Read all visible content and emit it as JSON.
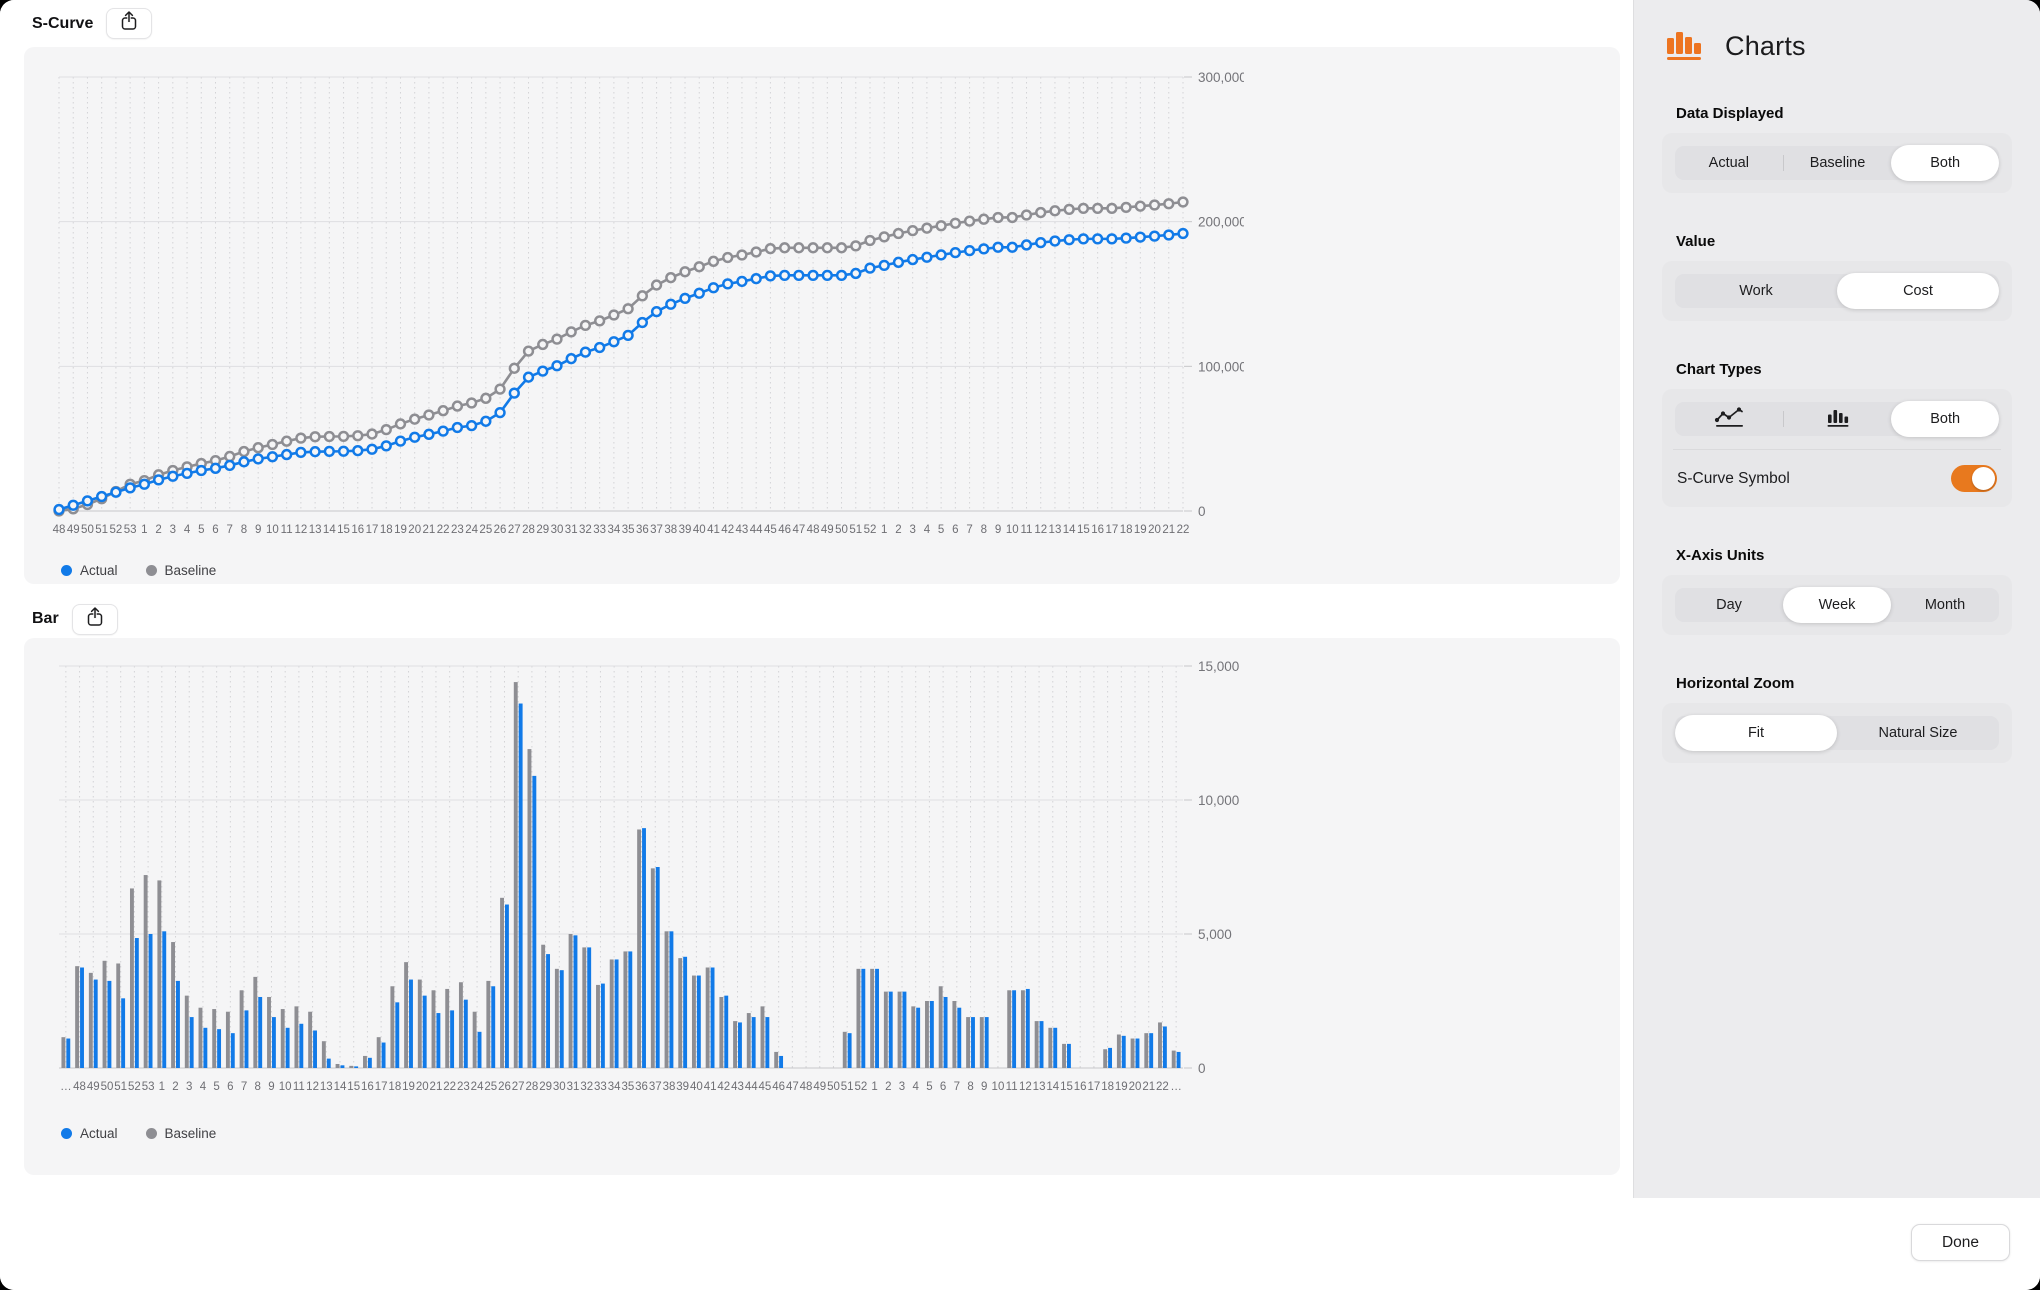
{
  "colors": {
    "actual": "#117ae8",
    "baseline": "#8e8e93",
    "accent_orange": "#e8791e"
  },
  "sidebar": {
    "title": "Charts",
    "sections": [
      {
        "heading": "Data Displayed",
        "segments": [
          "Actual",
          "Baseline",
          "Both"
        ],
        "selected": "Both"
      },
      {
        "heading": "Value",
        "segments": [
          "Work",
          "Cost"
        ],
        "selected": "Cost"
      },
      {
        "heading": "Chart Types",
        "segments": [
          "line-chart-icon",
          "bar-chart-icon",
          "Both"
        ],
        "selected": "Both",
        "toggle_label": "S-Curve Symbol",
        "toggle_on": true
      },
      {
        "heading": "X-Axis Units",
        "segments": [
          "Day",
          "Week",
          "Month"
        ],
        "selected": "Week"
      },
      {
        "heading": "Horizontal Zoom",
        "segments": [
          "Fit",
          "Natural Size"
        ],
        "selected": "Fit"
      }
    ]
  },
  "footer": {
    "done_label": "Done"
  },
  "chart_data": [
    {
      "type": "line",
      "title": "S-Curve",
      "legend": [
        "Actual",
        "Baseline"
      ],
      "legend_position": "bottom-left",
      "grid": true,
      "ylim": [
        0,
        300000
      ],
      "yticks": [
        {
          "v": 0,
          "t": "0"
        },
        {
          "v": 100000,
          "t": "100,000"
        },
        {
          "v": 200000,
          "t": "200,000"
        },
        {
          "v": 300000,
          "t": "300,000"
        }
      ],
      "xlabel": "",
      "ylabel": "",
      "categories": [
        "48",
        "49",
        "50",
        "51",
        "52",
        "53",
        "1",
        "2",
        "3",
        "4",
        "5",
        "6",
        "7",
        "8",
        "9",
        "10",
        "11",
        "12",
        "13",
        "14",
        "15",
        "16",
        "17",
        "18",
        "19",
        "20",
        "21",
        "22",
        "23",
        "24",
        "25",
        "26",
        "27",
        "28",
        "29",
        "30",
        "31",
        "32",
        "33",
        "34",
        "35",
        "36",
        "37",
        "38",
        "39",
        "40",
        "41",
        "42",
        "43",
        "44",
        "45",
        "46",
        "47",
        "48",
        "49",
        "50",
        "51",
        "52",
        "1",
        "2",
        "3",
        "4",
        "5",
        "6",
        "7",
        "8",
        "9",
        "10",
        "11",
        "12",
        "13",
        "14",
        "15",
        "16",
        "17",
        "18",
        "19",
        "20",
        "21",
        "22"
      ],
      "series": [
        {
          "name": "Baseline",
          "color": "#8e8e93",
          "values": [
            0,
            1500,
            4500,
            8500,
            13500,
            18500,
            21000,
            25000,
            28000,
            30500,
            32800,
            34800,
            37700,
            41100,
            43750,
            45950,
            48250,
            50350,
            51350,
            51500,
            51580,
            52030,
            53180,
            56230,
            60180,
            63480,
            66380,
            69330,
            72530,
            74630,
            77880,
            84230,
            98630,
            110530,
            115130,
            118830,
            123830,
            128330,
            131430,
            135480,
            139830,
            148730,
            156180,
            161280,
            165380,
            168830,
            172580,
            175230,
            176980,
            179030,
            181330,
            181930,
            181930,
            181930,
            181930,
            181930,
            183280,
            186980,
            189500,
            191800,
            193800,
            195500,
            197200,
            198900,
            200400,
            201700,
            202900,
            202900,
            204600,
            206300,
            207500,
            208500,
            209200,
            209200,
            209200,
            209900,
            210700,
            211500,
            212400,
            213600
          ]
        },
        {
          "name": "Actual",
          "color": "#117ae8",
          "values": [
            1000,
            4000,
            7000,
            10000,
            13000,
            16000,
            18500,
            21500,
            24000,
            26000,
            28000,
            29500,
            31500,
            34000,
            36000,
            37500,
            39000,
            40500,
            41000,
            41200,
            41300,
            41700,
            42700,
            45000,
            48300,
            51000,
            53000,
            55200,
            57700,
            59000,
            62000,
            68000,
            81500,
            92500,
            96700,
            100400,
            105300,
            109800,
            113000,
            117000,
            121400,
            130300,
            137800,
            142900,
            147000,
            150500,
            154300,
            157000,
            158700,
            160600,
            162500,
            162900,
            162900,
            162900,
            162900,
            162900,
            164200,
            167900,
            169800,
            171900,
            173800,
            175400,
            177000,
            178600,
            180000,
            181200,
            182300,
            182300,
            183900,
            185500,
            186600,
            187500,
            188100,
            188100,
            188100,
            188600,
            189300,
            190000,
            190800,
            191800
          ]
        }
      ]
    },
    {
      "type": "bar",
      "title": "Bar",
      "legend": [
        "Actual",
        "Baseline"
      ],
      "legend_position": "bottom-left",
      "grid": true,
      "ylim": [
        0,
        15000
      ],
      "yticks": [
        {
          "v": 0,
          "t": "0"
        },
        {
          "v": 5000,
          "t": "5,000"
        },
        {
          "v": 10000,
          "t": "10,000"
        },
        {
          "v": 15000,
          "t": "15,000"
        }
      ],
      "xlabel": "",
      "ylabel": "",
      "categories": [
        "…",
        "48",
        "49",
        "50",
        "51",
        "52",
        "53",
        "1",
        "2",
        "3",
        "4",
        "5",
        "6",
        "7",
        "8",
        "9",
        "10",
        "11",
        "12",
        "13",
        "14",
        "15",
        "16",
        "17",
        "18",
        "19",
        "20",
        "21",
        "22",
        "23",
        "24",
        "25",
        "26",
        "27",
        "28",
        "29",
        "30",
        "31",
        "32",
        "33",
        "34",
        "35",
        "36",
        "37",
        "38",
        "39",
        "40",
        "41",
        "42",
        "43",
        "44",
        "45",
        "46",
        "47",
        "48",
        "49",
        "50",
        "51",
        "52",
        "1",
        "2",
        "3",
        "4",
        "5",
        "6",
        "7",
        "8",
        "9",
        "10",
        "11",
        "12",
        "13",
        "14",
        "15",
        "16",
        "17",
        "18",
        "19",
        "20",
        "21",
        "22",
        "…"
      ],
      "series": [
        {
          "name": "Baseline",
          "color": "#8e8e93",
          "values": [
            1150,
            3800,
            3550,
            4000,
            3900,
            6700,
            7200,
            7000,
            4700,
            2700,
            2250,
            2200,
            2100,
            2900,
            3400,
            2650,
            2200,
            2300,
            2100,
            1000,
            150,
            80,
            450,
            1150,
            3050,
            3950,
            3300,
            2900,
            2950,
            3200,
            2100,
            3250,
            6350,
            14400,
            11900,
            4600,
            3700,
            5000,
            4500,
            3100,
            4050,
            4350,
            8900,
            7450,
            5100,
            4100,
            3450,
            3750,
            2650,
            1750,
            2050,
            2300,
            600,
            0,
            0,
            0,
            0,
            1350,
            3700,
            3700,
            2850,
            2850,
            2300,
            2500,
            3050,
            2500,
            1900,
            1900,
            0,
            2900,
            2900,
            1750,
            1500,
            900,
            0,
            0,
            700,
            1250,
            1100,
            1300,
            1700,
            650
          ]
        },
        {
          "name": "Actual",
          "color": "#117ae8",
          "values": [
            1100,
            3750,
            3300,
            3250,
            2600,
            4850,
            5000,
            5100,
            3250,
            1900,
            1500,
            1450,
            1300,
            2150,
            2650,
            1900,
            1500,
            1650,
            1400,
            350,
            100,
            60,
            380,
            950,
            2450,
            3300,
            2700,
            2050,
            2150,
            2550,
            1350,
            3050,
            6100,
            13600,
            10900,
            4250,
            3650,
            4950,
            4500,
            3150,
            4050,
            4350,
            8950,
            7500,
            5100,
            4150,
            3450,
            3750,
            2700,
            1700,
            1900,
            1900,
            450,
            0,
            0,
            0,
            0,
            1300,
            3700,
            3700,
            2850,
            2850,
            2250,
            2500,
            2650,
            2250,
            1900,
            1900,
            0,
            2900,
            2950,
            1750,
            1500,
            900,
            0,
            0,
            750,
            1200,
            1100,
            1300,
            1550,
            600
          ]
        }
      ]
    }
  ]
}
